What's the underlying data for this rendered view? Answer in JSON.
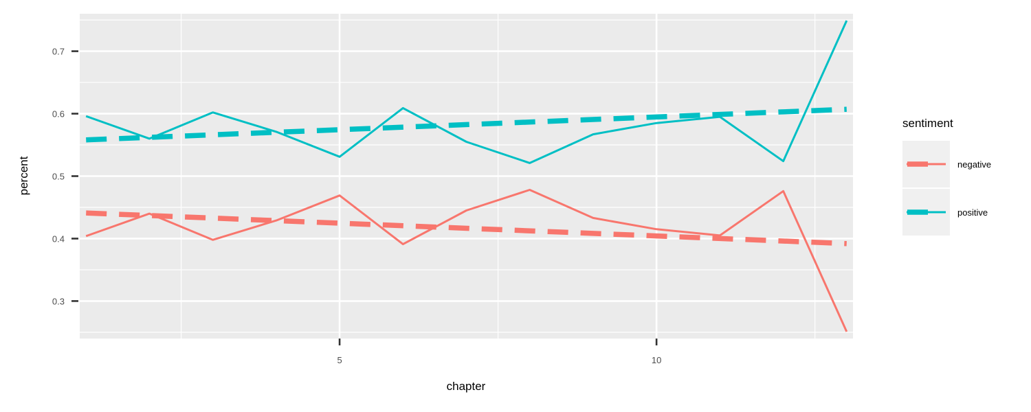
{
  "chart_data": {
    "type": "line",
    "xlabel": "chapter",
    "ylabel": "percent",
    "xlim": [
      0.9,
      13.1
    ],
    "ylim": [
      0.24,
      0.76
    ],
    "x_ticks": [
      5,
      10
    ],
    "x_minor_ticks": [
      2.5,
      7.5,
      12.5
    ],
    "y_ticks": [
      0.3,
      0.4,
      0.5,
      0.6,
      0.7
    ],
    "y_minor_ticks": [
      0.25,
      0.35,
      0.45,
      0.55,
      0.65,
      0.75
    ],
    "x": [
      1,
      2,
      3,
      4,
      5,
      6,
      7,
      8,
      9,
      10,
      11,
      12,
      13
    ],
    "legend": {
      "title": "sentiment",
      "position": "right"
    },
    "grid": true,
    "panel_background": "#ebebeb",
    "series": [
      {
        "name": "negative",
        "color": "#f8766d",
        "values": [
          0.404,
          0.44,
          0.398,
          0.429,
          0.469,
          0.391,
          0.445,
          0.478,
          0.433,
          0.415,
          0.405,
          0.476,
          0.251
        ],
        "trend": {
          "style": "dashed",
          "start": 0.441,
          "end": 0.392
        }
      },
      {
        "name": "positive",
        "color": "#00bfc4",
        "values": [
          0.596,
          0.56,
          0.602,
          0.571,
          0.531,
          0.609,
          0.555,
          0.521,
          0.567,
          0.585,
          0.595,
          0.524,
          0.749
        ],
        "trend": {
          "style": "dashed",
          "start": 0.558,
          "end": 0.607
        }
      }
    ]
  }
}
